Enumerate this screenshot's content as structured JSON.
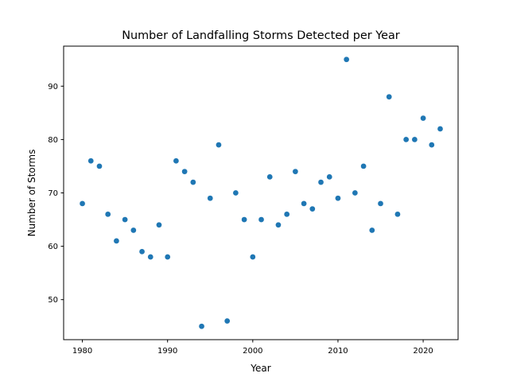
{
  "chart_data": {
    "type": "scatter",
    "title": "Number of Landfalling Storms Detected per Year",
    "xlabel": "Year",
    "ylabel": "Number of Storms",
    "xlim": [
      1977.8,
      2024.1
    ],
    "ylim": [
      42.5,
      97.5
    ],
    "xticks": [
      1980,
      1990,
      2000,
      2010,
      2020
    ],
    "yticks": [
      50,
      60,
      70,
      80,
      90
    ],
    "grid": false,
    "color": "#1f77b4",
    "x": [
      1980,
      1981,
      1982,
      1983,
      1984,
      1985,
      1986,
      1987,
      1988,
      1989,
      1990,
      1991,
      1992,
      1993,
      1994,
      1995,
      1996,
      1997,
      1998,
      1999,
      2000,
      2001,
      2002,
      2003,
      2004,
      2005,
      2006,
      2007,
      2008,
      2009,
      2010,
      2011,
      2012,
      2013,
      2014,
      2015,
      2016,
      2017,
      2018,
      2019,
      2020,
      2021,
      2022
    ],
    "y": [
      68,
      76,
      75,
      66,
      61,
      65,
      63,
      59,
      58,
      64,
      58,
      76,
      74,
      72,
      45,
      69,
      79,
      46,
      70,
      65,
      58,
      65,
      73,
      64,
      66,
      74,
      68,
      67,
      72,
      73,
      69,
      95,
      70,
      75,
      63,
      68,
      88,
      66,
      80,
      80,
      84,
      79,
      82
    ]
  }
}
